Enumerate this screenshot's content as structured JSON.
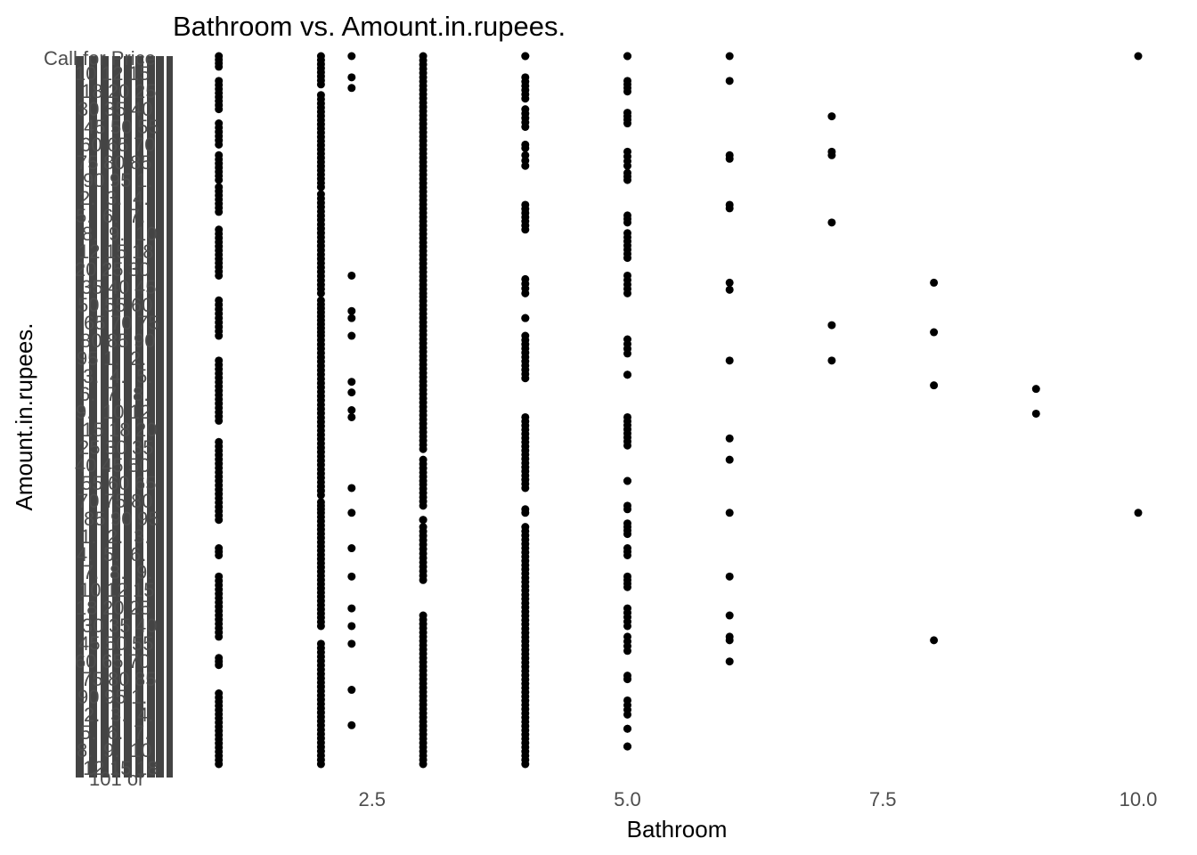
{
  "chart_data": {
    "type": "scatter",
    "title": "Bathroom vs. Amount.in.rupees.",
    "xlabel": "Bathroom",
    "ylabel": "Amount.in.rupees.",
    "xlim": [
      0,
      10
    ],
    "x_ticks": [
      "2.5",
      "5.0",
      "7.5",
      "10.0"
    ],
    "x_tick_values": [
      2.5,
      5.0,
      7.5,
      10.0
    ],
    "y_axis_note": "Categorical y-axis of unique price strings; tick labels overprint illegibly. Visible fragments include \"Call for Price\" at top.",
    "y_top_label": "Call for Price",
    "y_fragment_labels": [
      "10",
      "12",
      "15",
      "18",
      "20",
      "25",
      "30",
      "35",
      "40",
      "45",
      "50",
      "55",
      "60",
      "65",
      "70",
      "75",
      "80",
      "85",
      "90",
      "95",
      "1.",
      "2.",
      "3.",
      "4.",
      "5.",
      "6.",
      "7.",
      "8.",
      "9."
    ],
    "grid": false,
    "legend": "none",
    "point_color": "#000000",
    "x_columns": [
      1,
      2,
      2.3,
      3,
      4,
      5,
      6,
      7,
      8,
      9,
      10
    ],
    "sparse_points": [
      {
        "x": 2.3,
        "y": [
          0.0,
          0.03,
          0.045,
          0.31,
          0.36,
          0.37,
          0.395,
          0.46,
          0.475,
          0.5,
          0.51,
          0.61,
          0.645,
          0.695,
          0.735,
          0.78,
          0.805,
          0.83,
          0.895,
          0.945
        ]
      },
      {
        "x": 6,
        "y": [
          0.0,
          0.035,
          0.14,
          0.145,
          0.21,
          0.215,
          0.32,
          0.33,
          0.43,
          0.54,
          0.57,
          0.645,
          0.735,
          0.79,
          0.82,
          0.825,
          0.855
        ]
      },
      {
        "x": 7,
        "y": [
          0.085,
          0.135,
          0.14,
          0.235,
          0.38,
          0.43
        ]
      },
      {
        "x": 8,
        "y": [
          0.32,
          0.39,
          0.465,
          0.825
        ]
      },
      {
        "x": 9,
        "y": [
          0.47,
          0.505
        ]
      },
      {
        "x": 10,
        "y": [
          0.0,
          0.645
        ]
      }
    ],
    "dense_columns": [
      {
        "x": 1,
        "segments": [
          [
            0.0,
            0.015
          ],
          [
            0.035,
            0.075
          ],
          [
            0.095,
            0.125
          ],
          [
            0.14,
            0.175
          ],
          [
            0.185,
            0.22
          ],
          [
            0.245,
            0.31
          ],
          [
            0.345,
            0.395
          ],
          [
            0.43,
            0.515
          ],
          [
            0.545,
            0.655
          ],
          [
            0.695,
            0.705
          ],
          [
            0.735,
            0.82
          ],
          [
            0.85,
            0.86
          ],
          [
            0.9,
            1.0
          ]
        ]
      },
      {
        "x": 2,
        "segments": [
          [
            0.0,
            0.04
          ],
          [
            0.055,
            0.185
          ],
          [
            0.195,
            0.335
          ],
          [
            0.345,
            0.39
          ],
          [
            0.395,
            0.62
          ],
          [
            0.63,
            0.64
          ],
          [
            0.645,
            0.805
          ],
          [
            0.83,
            1.0
          ]
        ]
      },
      {
        "x": 3,
        "segments": [
          [
            0.0,
            0.335
          ],
          [
            0.34,
            0.555
          ],
          [
            0.57,
            0.6
          ],
          [
            0.605,
            0.635
          ],
          [
            0.655,
            0.655
          ],
          [
            0.665,
            0.74
          ],
          [
            0.79,
            1.0
          ]
        ]
      },
      {
        "x": 4,
        "segments": [
          [
            0.0,
            0.0
          ],
          [
            0.03,
            0.06
          ],
          [
            0.075,
            0.1
          ],
          [
            0.125,
            0.13
          ],
          [
            0.14,
            0.155
          ],
          [
            0.21,
            0.245
          ],
          [
            0.315,
            0.335
          ],
          [
            0.37,
            0.37
          ],
          [
            0.395,
            0.455
          ],
          [
            0.51,
            0.61
          ],
          [
            0.64,
            0.645
          ],
          [
            0.665,
            1.0
          ]
        ]
      },
      {
        "x": 5,
        "segments": [
          [
            0.0,
            0.0
          ],
          [
            0.035,
            0.05
          ],
          [
            0.08,
            0.095
          ],
          [
            0.135,
            0.155
          ],
          [
            0.165,
            0.175
          ],
          [
            0.225,
            0.235
          ],
          [
            0.25,
            0.285
          ],
          [
            0.31,
            0.335
          ],
          [
            0.4,
            0.42
          ],
          [
            0.45,
            0.45
          ],
          [
            0.51,
            0.55
          ],
          [
            0.6,
            0.6
          ],
          [
            0.635,
            0.64
          ],
          [
            0.66,
            0.675
          ],
          [
            0.695,
            0.705
          ],
          [
            0.735,
            0.75
          ],
          [
            0.78,
            0.805
          ],
          [
            0.82,
            0.84
          ],
          [
            0.875,
            0.88
          ],
          [
            0.91,
            0.93
          ],
          [
            0.95,
            0.95
          ],
          [
            0.975,
            0.975
          ]
        ]
      }
    ]
  }
}
